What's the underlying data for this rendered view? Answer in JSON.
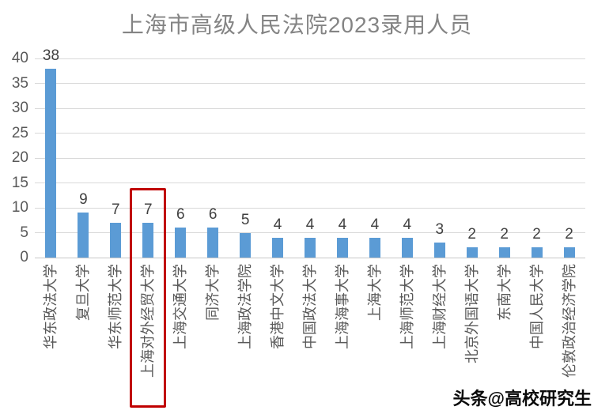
{
  "chart_data": {
    "type": "bar",
    "title": "上海市高级人民法院2023录用人员",
    "categories": [
      "华东政法大学",
      "复旦大学",
      "华东师范大学",
      "上海对外经贸大学",
      "上海交通大学",
      "同济大学",
      "上海政法学院",
      "香港中文大学",
      "中国政法大学",
      "上海海事大学",
      "上海大学",
      "上海师范大学",
      "上海财经大学",
      "北京外国语大学",
      "东南大学",
      "中国人民大学",
      "伦敦政治经济学院"
    ],
    "values": [
      38,
      9,
      7,
      7,
      6,
      6,
      5,
      4,
      4,
      4,
      4,
      4,
      3,
      2,
      2,
      2,
      2
    ],
    "xlabel": "",
    "ylabel": "",
    "ylim": [
      0,
      40
    ],
    "yticks": [
      0,
      5,
      10,
      15,
      20,
      25,
      30,
      35,
      40
    ],
    "grid": true,
    "legend_position": "none",
    "data_labels": true,
    "category_label_rotation_deg": -90,
    "colors": {
      "bar": "#5b9bd5",
      "title": "#848484",
      "axis_labels": "#595959",
      "data_labels": "#404040",
      "gridline": "#d9d9d9",
      "highlight_box": "#c00000"
    },
    "highlight": {
      "index": 3,
      "category": "上海对外经贸大学",
      "style": "red-outline-box"
    }
  },
  "watermark": {
    "text": "头条@高校研究生"
  }
}
